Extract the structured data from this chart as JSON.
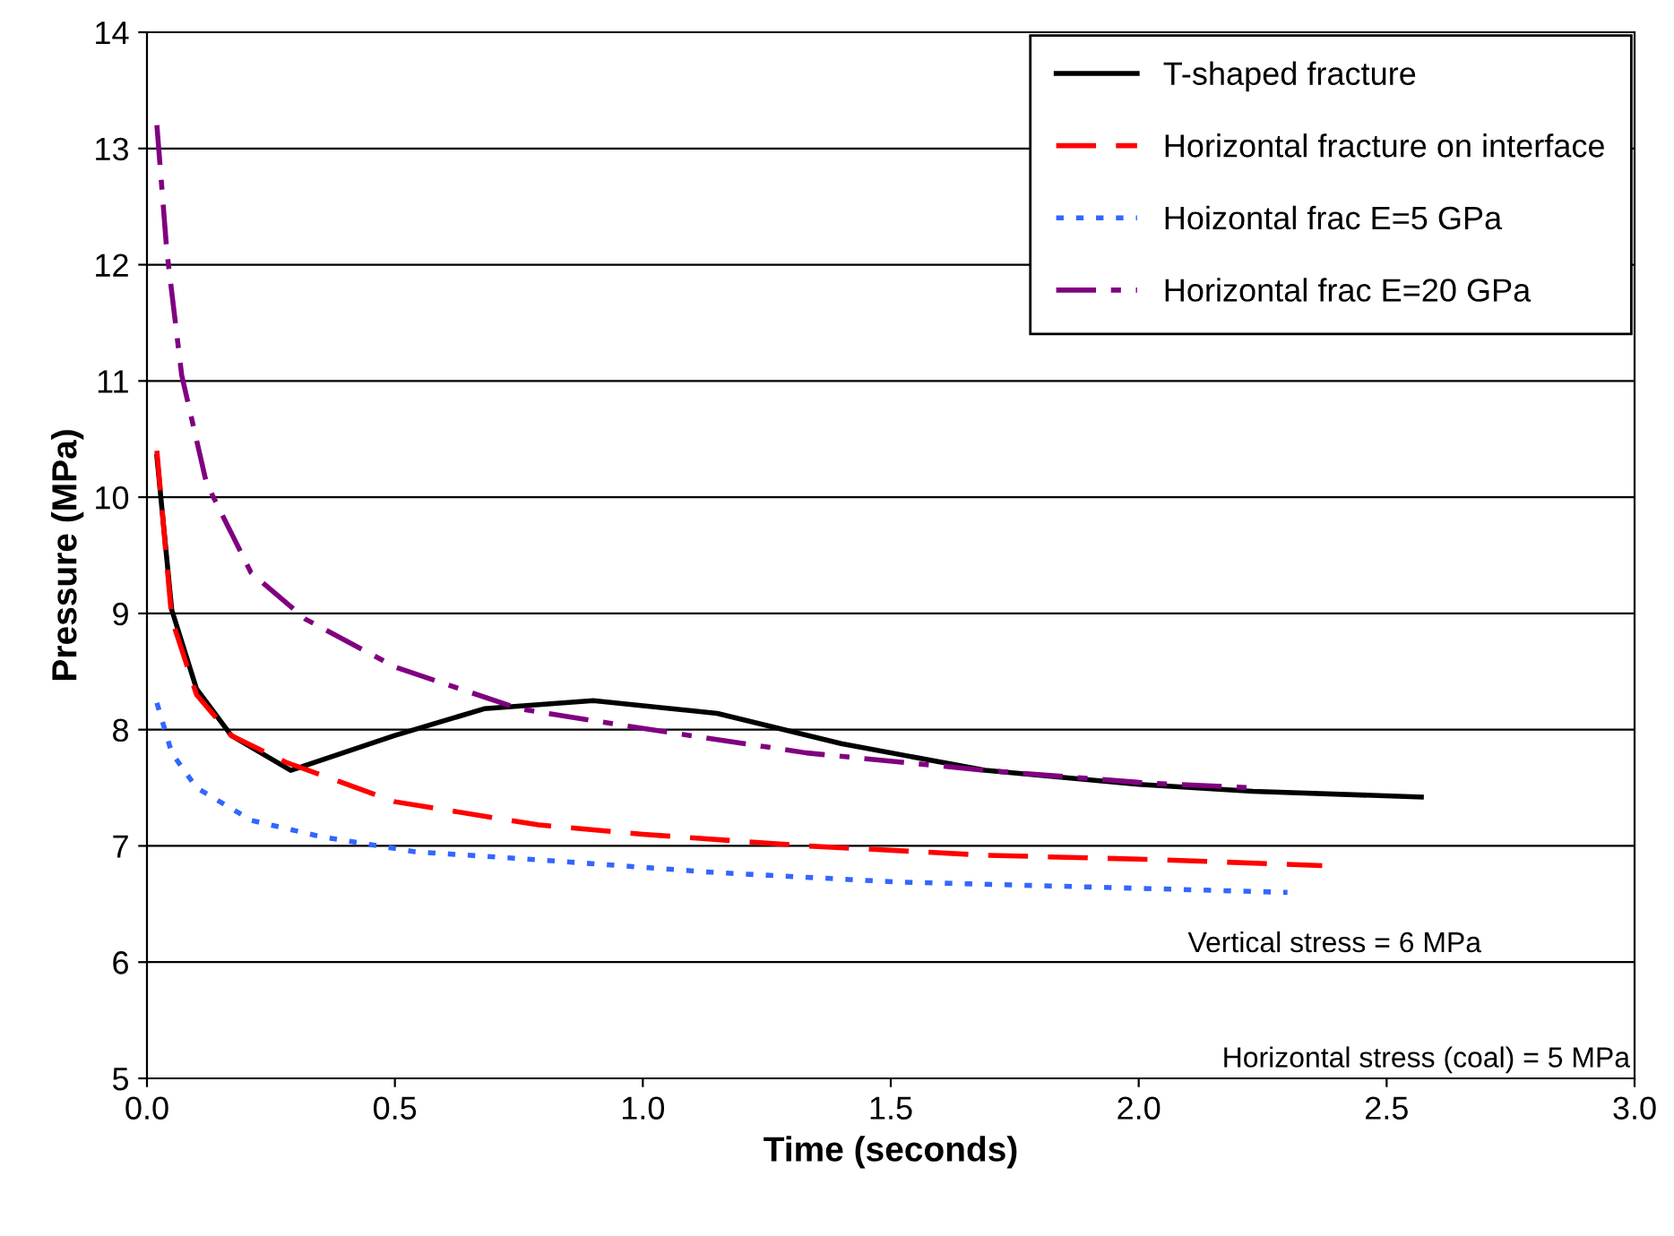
{
  "chart_data": {
    "type": "line",
    "xlabel": "Time (seconds)",
    "ylabel": "Pressure (MPa)",
    "xlim": [
      0,
      3
    ],
    "ylim": [
      5,
      14
    ],
    "xticks": [
      {
        "value": 0,
        "label": "0.0"
      },
      {
        "value": 0.5,
        "label": "0.5"
      },
      {
        "value": 1,
        "label": "1.0"
      },
      {
        "value": 1.5,
        "label": "1.5"
      },
      {
        "value": 2,
        "label": "2.0"
      },
      {
        "value": 2.5,
        "label": "2.5"
      },
      {
        "value": 3,
        "label": "3.0"
      }
    ],
    "yticks": [
      5,
      6,
      7,
      8,
      9,
      10,
      11,
      12,
      13,
      14
    ],
    "grid": "y",
    "legend": "top right",
    "marker": "none",
    "series": [
      {
        "name": "T-shaped fracture",
        "color": "#000000",
        "line_style": "solid",
        "x": [
          0.02,
          0.05,
          0.1,
          0.17,
          0.29,
          0.5,
          0.68,
          0.9,
          1.15,
          1.4,
          1.69,
          2.0,
          2.23,
          2.57
        ],
        "values": [
          10.35,
          9.03,
          8.35,
          7.95,
          7.65,
          7.95,
          8.18,
          8.25,
          8.14,
          7.88,
          7.65,
          7.53,
          7.47,
          7.42
        ]
      },
      {
        "name": "Horizontal fracture on interface",
        "color": "#ff0000",
        "line_style": "dashed",
        "x": [
          0.02,
          0.05,
          0.1,
          0.17,
          0.28,
          0.5,
          0.79,
          1.0,
          1.33,
          1.69,
          2.05,
          2.37
        ],
        "values": [
          10.4,
          8.95,
          8.3,
          7.95,
          7.72,
          7.38,
          7.18,
          7.1,
          7.0,
          6.92,
          6.88,
          6.83
        ]
      },
      {
        "name": "Hoizontal frac E=5 GPa",
        "color": "#3366ff",
        "line_style": "dotted",
        "x": [
          0.02,
          0.05,
          0.1,
          0.21,
          0.35,
          0.54,
          0.79,
          1.15,
          1.51,
          1.87,
          2.3
        ],
        "values": [
          8.23,
          7.8,
          7.5,
          7.22,
          7.08,
          6.95,
          6.88,
          6.77,
          6.69,
          6.65,
          6.6
        ]
      },
      {
        "name": "Horizontal frac E=20 GPa",
        "color": "#800080",
        "line_style": "dashdot",
        "x": [
          0.02,
          0.04,
          0.07,
          0.12,
          0.21,
          0.32,
          0.5,
          0.75,
          0.97,
          1.33,
          1.69,
          2.02,
          2.23
        ],
        "values": [
          13.2,
          12.12,
          11.05,
          10.12,
          9.35,
          8.95,
          8.54,
          8.18,
          8.03,
          7.8,
          7.65,
          7.54,
          7.5
        ]
      }
    ],
    "annotations": [
      "Vertical stress = 6 MPa",
      "Horizontal stress (coal) = 5 MPa"
    ]
  }
}
